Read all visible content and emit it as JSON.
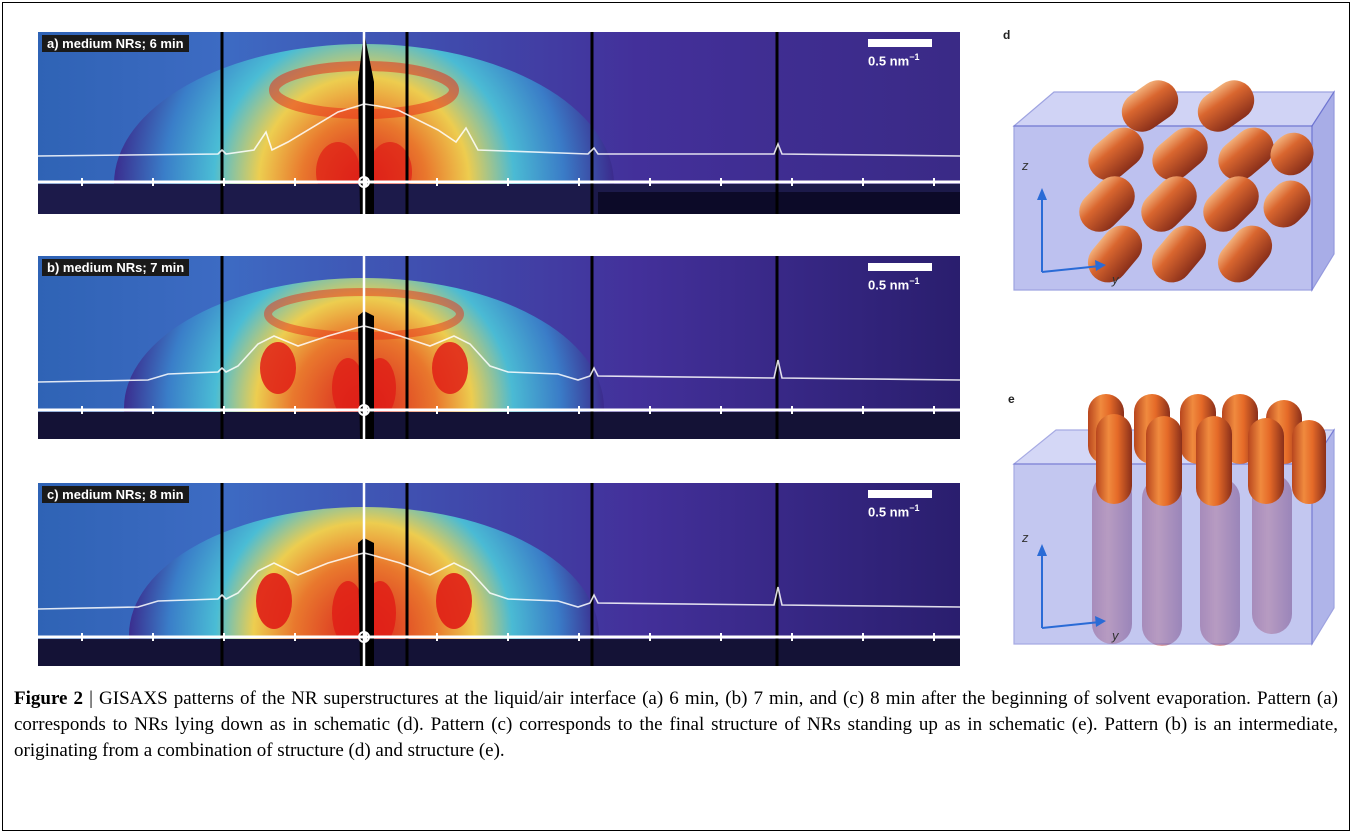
{
  "panels": [
    {
      "label": "a) medium NRs; 6 min",
      "scale_label": "0.5 nm",
      "scale_exp": "−1"
    },
    {
      "label": "b) medium NRs; 7 min",
      "scale_label": "0.5 nm",
      "scale_exp": "−1"
    },
    {
      "label": "c) medium NRs; 8 min",
      "scale_label": "0.5 nm",
      "scale_exp": "−1"
    }
  ],
  "schematics": [
    {
      "letter": "d",
      "axis_z": "z",
      "axis_y": "y"
    },
    {
      "letter": "e",
      "axis_z": "z",
      "axis_y": "y"
    }
  ],
  "caption": {
    "bold": "Figure 2",
    "text": " | GISAXS patterns of the NR superstructures at the liquid/air interface (a) 6 min, (b) 7 min, and (c) 8 min after the beginning of solvent evaporation. Pattern (a) corresponds to NRs lying down as in schematic (d). Pattern (c) corresponds to the final structure of NRs standing up as in schematic (e). Pattern (b) is an intermediate, originating from a combination of structure (d) and structure (e)."
  },
  "colors": {
    "background_dark": "#3b2a8c",
    "hot": "#e8221a",
    "warm": "#f5c240",
    "cool": "#2aa5d8",
    "rod": "#d9662f",
    "box": "#7f86df"
  }
}
